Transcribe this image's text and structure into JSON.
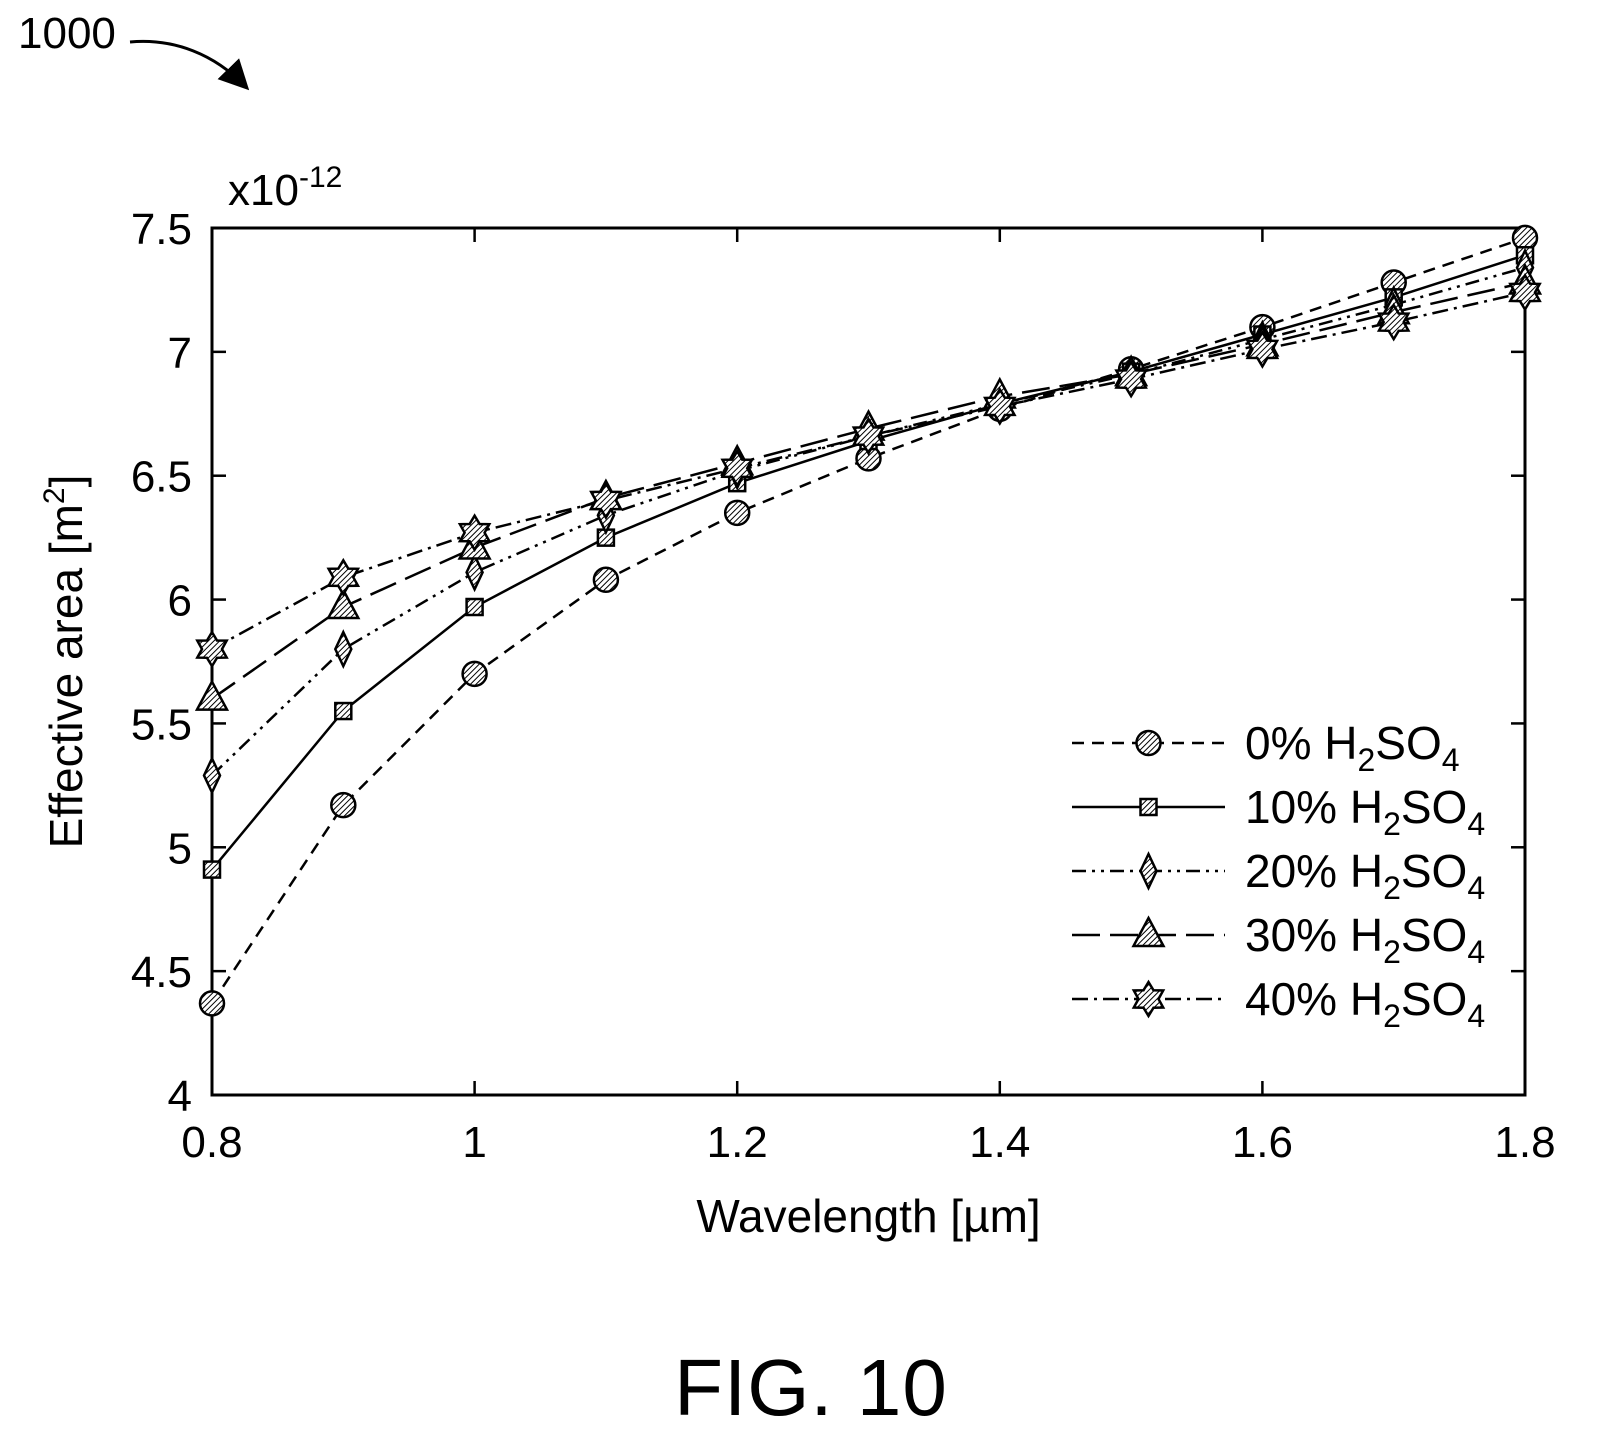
{
  "figure": {
    "reference_number": "1000",
    "caption": "FIG. 10"
  },
  "chart_data": {
    "type": "line",
    "xlabel": "Wavelength [µm]",
    "ylabel": "Effective area [m",
    "ylabel_superscript": "2",
    "ylabel_suffix": "]",
    "y_multiplier": "x10",
    "y_multiplier_exponent": "-12",
    "xlim": [
      0.8,
      1.8
    ],
    "ylim": [
      4,
      7.5
    ],
    "x_ticks": [
      "0.8",
      "1",
      "1.2",
      "1.4",
      "1.6",
      "1.8"
    ],
    "y_ticks": [
      "4",
      "4.5",
      "5",
      "5.5",
      "6",
      "6.5",
      "7",
      "7.5"
    ],
    "grid": false,
    "legend_position": "lower-right",
    "x": [
      0.8,
      0.9,
      1.0,
      1.1,
      1.2,
      1.3,
      1.4,
      1.5,
      1.6,
      1.7,
      1.8
    ],
    "series": [
      {
        "name": "0% H2SO4",
        "label_prefix": "0% H",
        "label_sub1": "2",
        "label_mid": "SO",
        "label_sub2": "4",
        "marker": "circle",
        "dash": "dashed",
        "values": [
          4.37,
          5.17,
          5.7,
          6.08,
          6.35,
          6.57,
          6.77,
          6.93,
          7.1,
          7.28,
          7.46
        ]
      },
      {
        "name": "10% H2SO4",
        "label_prefix": "10% H",
        "label_sub1": "2",
        "label_mid": "SO",
        "label_sub2": "4",
        "marker": "square",
        "dash": "solid",
        "values": [
          4.91,
          5.55,
          5.97,
          6.25,
          6.47,
          6.64,
          6.79,
          6.92,
          7.07,
          7.22,
          7.39
        ]
      },
      {
        "name": "20% H2SO4",
        "label_prefix": "20% H",
        "label_sub1": "2",
        "label_mid": "SO",
        "label_sub2": "4",
        "marker": "diamond",
        "dash": "dashdotdot",
        "values": [
          5.29,
          5.8,
          6.11,
          6.34,
          6.52,
          6.66,
          6.79,
          6.91,
          7.05,
          7.19,
          7.34
        ]
      },
      {
        "name": "30% H2SO4",
        "label_prefix": "30% H",
        "label_sub1": "2",
        "label_mid": "SO",
        "label_sub2": "4",
        "marker": "triangle",
        "dash": "longdash",
        "values": [
          5.6,
          5.97,
          6.21,
          6.41,
          6.55,
          6.69,
          6.82,
          6.91,
          7.03,
          7.16,
          7.28
        ]
      },
      {
        "name": "40% H2SO4",
        "label_prefix": "40% H",
        "label_sub1": "2",
        "label_mid": "SO",
        "label_sub2": "4",
        "marker": "star",
        "dash": "dashdot",
        "values": [
          5.8,
          6.09,
          6.27,
          6.4,
          6.53,
          6.66,
          6.78,
          6.89,
          7.01,
          7.12,
          7.24
        ]
      }
    ]
  }
}
